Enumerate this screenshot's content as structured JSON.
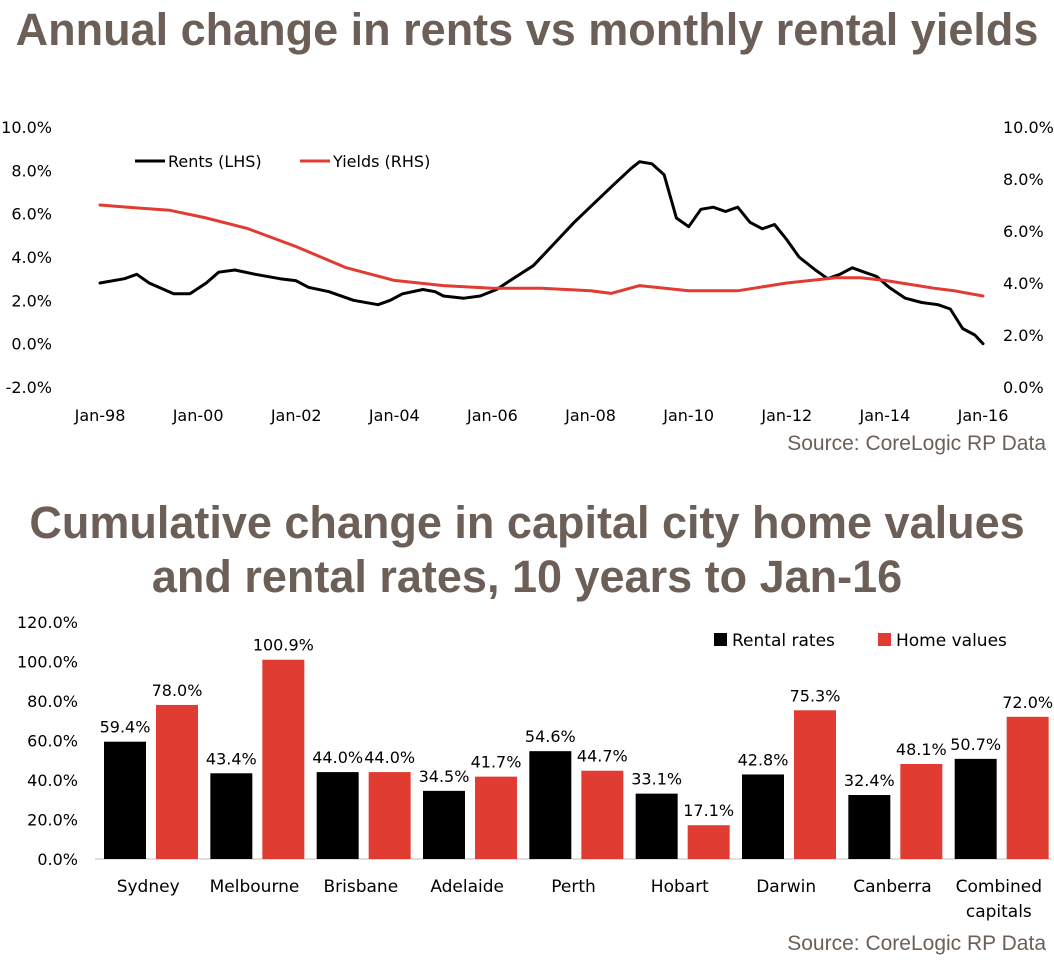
{
  "chart1": {
    "title": "Annual change in rents vs monthly rental yields",
    "source": "Source: CoreLogic RP Data",
    "chart_data": {
      "type": "line",
      "y_left_ticks": [
        "10.0%",
        "8.0%",
        "6.0%",
        "4.0%",
        "2.0%",
        "0.0%",
        "-2.0%"
      ],
      "y_right_ticks": [
        "10.0%",
        "8.0%",
        "6.0%",
        "4.0%",
        "2.0%",
        "0.0%"
      ],
      "x_ticks": [
        "Jan-98",
        "Jan-00",
        "Jan-02",
        "Jan-04",
        "Jan-06",
        "Jan-08",
        "Jan-10",
        "Jan-12",
        "Jan-14",
        "Jan-16"
      ],
      "ylim_left": [
        -2,
        10
      ],
      "ylim_right": [
        0,
        10
      ],
      "legend_position": "top-left",
      "grid": false,
      "series": [
        {
          "name": "Rents (LHS)",
          "color": "#000000",
          "axis": "left",
          "points": [
            [
              "Jan-98",
              2.8
            ],
            [
              "Jul-98",
              3.0
            ],
            [
              "Oct-98",
              3.2
            ],
            [
              "Jan-99",
              2.8
            ],
            [
              "Jul-99",
              2.3
            ],
            [
              "Nov-99",
              2.3
            ],
            [
              "Mar-00",
              2.8
            ],
            [
              "Jun-00",
              3.3
            ],
            [
              "Oct-00",
              3.4
            ],
            [
              "Mar-01",
              3.2
            ],
            [
              "Sep-01",
              3.0
            ],
            [
              "Jan-02",
              2.9
            ],
            [
              "Apr-02",
              2.6
            ],
            [
              "Sep-02",
              2.4
            ],
            [
              "Mar-03",
              2.0
            ],
            [
              "Sep-03",
              1.8
            ],
            [
              "Dec-03",
              2.0
            ],
            [
              "Mar-04",
              2.3
            ],
            [
              "Aug-04",
              2.5
            ],
            [
              "Nov-04",
              2.4
            ],
            [
              "Jan-05",
              2.2
            ],
            [
              "Jun-05",
              2.1
            ],
            [
              "Oct-05",
              2.2
            ],
            [
              "Feb-06",
              2.5
            ],
            [
              "Jun-06",
              3.0
            ],
            [
              "Nov-06",
              3.6
            ],
            [
              "Apr-07",
              4.6
            ],
            [
              "Sep-07",
              5.6
            ],
            [
              "Feb-08",
              6.5
            ],
            [
              "Jul-08",
              7.4
            ],
            [
              "Nov-08",
              8.1
            ],
            [
              "Jan-09",
              8.4
            ],
            [
              "Apr-09",
              8.3
            ],
            [
              "Jul-09",
              7.8
            ],
            [
              "Oct-09",
              5.8
            ],
            [
              "Jan-10",
              5.4
            ],
            [
              "Apr-10",
              6.2
            ],
            [
              "Jul-10",
              6.3
            ],
            [
              "Oct-10",
              6.1
            ],
            [
              "Jan-11",
              6.3
            ],
            [
              "Apr-11",
              5.6
            ],
            [
              "Jul-11",
              5.3
            ],
            [
              "Oct-11",
              5.5
            ],
            [
              "Jan-12",
              4.8
            ],
            [
              "Apr-12",
              4.0
            ],
            [
              "Aug-12",
              3.4
            ],
            [
              "Nov-12",
              3.0
            ],
            [
              "Feb-13",
              3.2
            ],
            [
              "May-13",
              3.5
            ],
            [
              "Aug-13",
              3.3
            ],
            [
              "Nov-13",
              3.1
            ],
            [
              "Feb-14",
              2.6
            ],
            [
              "Jun-14",
              2.1
            ],
            [
              "Oct-14",
              1.9
            ],
            [
              "Feb-15",
              1.8
            ],
            [
              "May-15",
              1.6
            ],
            [
              "Aug-15",
              0.7
            ],
            [
              "Nov-15",
              0.4
            ],
            [
              "Jan-16",
              0.0
            ]
          ]
        },
        {
          "name": "Yields (RHS)",
          "color": "#e03c31",
          "axis": "right",
          "points": [
            [
              "Jan-98",
              7.0
            ],
            [
              "Sep-98",
              6.9
            ],
            [
              "Jun-99",
              6.8
            ],
            [
              "Mar-00",
              6.5
            ],
            [
              "Jan-01",
              6.1
            ],
            [
              "Jan-02",
              5.4
            ],
            [
              "Jan-03",
              4.6
            ],
            [
              "Jan-04",
              4.1
            ],
            [
              "Jan-05",
              3.9
            ],
            [
              "Jan-06",
              3.8
            ],
            [
              "Jan-07",
              3.8
            ],
            [
              "Jan-08",
              3.7
            ],
            [
              "Jun-08",
              3.6
            ],
            [
              "Jan-09",
              3.9
            ],
            [
              "Jan-10",
              3.7
            ],
            [
              "Jan-11",
              3.7
            ],
            [
              "Jan-12",
              4.0
            ],
            [
              "Jan-13",
              4.2
            ],
            [
              "Jul-13",
              4.2
            ],
            [
              "Jan-14",
              4.1
            ],
            [
              "Jan-15",
              3.8
            ],
            [
              "Jun-15",
              3.7
            ],
            [
              "Jan-16",
              3.5
            ]
          ]
        }
      ]
    }
  },
  "chart2": {
    "title": "Cumulative change in capital city home values and rental rates, 10 years to Jan-16",
    "source": "Source: CoreLogic RP Data",
    "chart_data": {
      "type": "bar",
      "categories": [
        "Sydney",
        "Melbourne",
        "Brisbane",
        "Adelaide",
        "Perth",
        "Hobart",
        "Darwin",
        "Canberra",
        "Combined capitals"
      ],
      "y_ticks": [
        "120.0%",
        "100.0%",
        "80.0%",
        "60.0%",
        "40.0%",
        "20.0%",
        "0.0%"
      ],
      "ylim": [
        0,
        120
      ],
      "legend_position": "top-right",
      "grid": false,
      "series": [
        {
          "name": "Rental rates",
          "color": "#000000",
          "values": [
            59.4,
            43.4,
            44.0,
            34.5,
            54.6,
            33.1,
            42.8,
            32.4,
            50.7
          ],
          "labels": [
            "59.4%",
            "43.4%",
            "44.0%",
            "34.5%",
            "54.6%",
            "33.1%",
            "42.8%",
            "32.4%",
            "50.7%"
          ]
        },
        {
          "name": "Home values",
          "color": "#e03c31",
          "values": [
            78.0,
            100.9,
            44.0,
            41.7,
            44.7,
            17.1,
            75.3,
            48.1,
            72.0
          ],
          "labels": [
            "78.0%",
            "100.9%",
            "44.0%",
            "41.7%",
            "44.7%",
            "17.1%",
            "75.3%",
            "48.1%",
            "72.0%"
          ]
        }
      ]
    }
  }
}
